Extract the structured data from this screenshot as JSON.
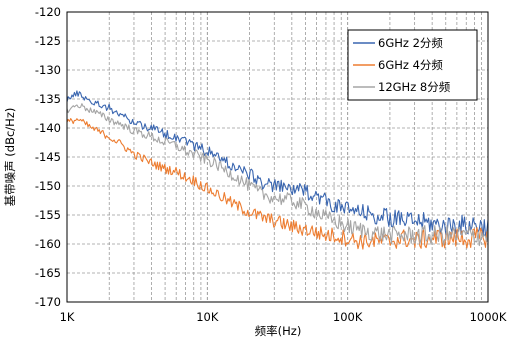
{
  "chart_data": {
    "type": "line",
    "xlabel": "频率(Hz)",
    "ylabel": "基带噪声 (dBc/Hz)",
    "xscale": "log",
    "xlim": [
      1000,
      1000000
    ],
    "ylim": [
      -170,
      -120
    ],
    "xticks": [
      {
        "value": 1000,
        "label": "1K"
      },
      {
        "value": 10000,
        "label": "10K"
      },
      {
        "value": 100000,
        "label": "100K"
      },
      {
        "value": 1000000,
        "label": "1000K"
      }
    ],
    "yticks": [
      {
        "value": -120,
        "label": "-120"
      },
      {
        "value": -125,
        "label": "-125"
      },
      {
        "value": -130,
        "label": "-130"
      },
      {
        "value": -135,
        "label": "-135"
      },
      {
        "value": -140,
        "label": "-140"
      },
      {
        "value": -145,
        "label": "-145"
      },
      {
        "value": -150,
        "label": "-150"
      },
      {
        "value": -155,
        "label": "-155"
      },
      {
        "value": -160,
        "label": "-160"
      },
      {
        "value": -165,
        "label": "-165"
      },
      {
        "value": -170,
        "label": "-170"
      }
    ],
    "grid": true,
    "grid_style": "dashed",
    "legend_position": "top-right",
    "series": [
      {
        "name": "6GHz 2分频",
        "color": "#3a66b0",
        "x": [
          1000,
          1200,
          1500,
          2000,
          2500,
          3000,
          4000,
          5000,
          6000,
          7000,
          8000,
          10000,
          12000,
          15000,
          20000,
          25000,
          30000,
          40000,
          50000,
          60000,
          70000,
          80000,
          100000,
          120000,
          150000,
          200000,
          250000,
          300000,
          400000,
          500000,
          600000,
          700000,
          800000,
          900000,
          1000000
        ],
        "y": [
          -135,
          -134,
          -135.5,
          -136.5,
          -138,
          -139,
          -140,
          -141,
          -141.5,
          -142,
          -143,
          -144,
          -145,
          -146.5,
          -148,
          -149.5,
          -150,
          -150.5,
          -151,
          -151.5,
          -152.5,
          -153.5,
          -154,
          -154.5,
          -155,
          -155.5,
          -156,
          -156,
          -156.5,
          -157,
          -156.5,
          -157,
          -156.5,
          -157,
          -157
        ]
      },
      {
        "name": "6GHz 4分频",
        "color": "#ed7d31",
        "x": [
          1000,
          1200,
          1500,
          2000,
          2500,
          3000,
          4000,
          5000,
          6000,
          7000,
          8000,
          10000,
          12000,
          15000,
          20000,
          25000,
          30000,
          40000,
          50000,
          60000,
          70000,
          80000,
          100000,
          120000,
          150000,
          200000,
          250000,
          300000,
          400000,
          500000,
          600000,
          700000,
          800000,
          900000,
          1000000
        ],
        "y": [
          -139,
          -138.5,
          -140,
          -141.5,
          -143,
          -144.5,
          -146,
          -147,
          -147.5,
          -148.5,
          -149,
          -150.5,
          -151.5,
          -153,
          -154.5,
          -155.5,
          -156,
          -157,
          -157.5,
          -158,
          -158.5,
          -158.5,
          -159,
          -159.5,
          -159.5,
          -159.5,
          -159,
          -159.5,
          -159,
          -159,
          -159,
          -159,
          -159,
          -159,
          -158.5
        ]
      },
      {
        "name": "12GHz 8分频",
        "color": "#a5a5a5",
        "x": [
          1000,
          1200,
          1500,
          2000,
          2500,
          3000,
          4000,
          5000,
          6000,
          7000,
          8000,
          10000,
          12000,
          15000,
          20000,
          25000,
          30000,
          40000,
          50000,
          60000,
          70000,
          80000,
          100000,
          120000,
          150000,
          200000,
          250000,
          300000,
          400000,
          500000,
          600000,
          700000,
          800000,
          900000,
          1000000
        ],
        "y": [
          -137,
          -136,
          -137,
          -138.5,
          -139.5,
          -140.5,
          -141.5,
          -142.5,
          -143,
          -144,
          -144.5,
          -145.5,
          -146.5,
          -148,
          -150,
          -151.5,
          -152,
          -152.5,
          -153.5,
          -154.5,
          -155.5,
          -156,
          -157,
          -157.5,
          -158,
          -158.5,
          -158.5,
          -158.5,
          -158.5,
          -158.5,
          -158.5,
          -158.5,
          -158.5,
          -158.5,
          -158.5
        ]
      }
    ]
  }
}
